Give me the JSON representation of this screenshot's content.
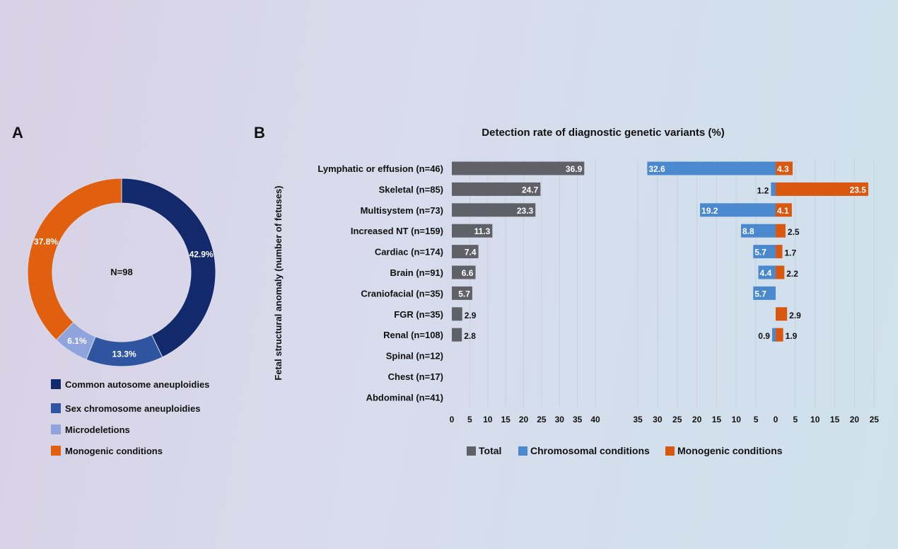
{
  "panels": {
    "a_label": "A",
    "b_label": "B"
  },
  "chart_data": [
    {
      "id": "A",
      "type": "pie",
      "variant": "donut",
      "center_label": "N=98",
      "slices": [
        {
          "label": "Common autosome aneuploidies",
          "value": 42.9,
          "display": "42.9%",
          "color": "#12296b"
        },
        {
          "label": "Sex chromosome aneuploidies",
          "value": 13.3,
          "display": "13.3%",
          "color": "#2f55a0"
        },
        {
          "label": "Microdeletions",
          "value": 6.1,
          "display": "6.1%",
          "color": "#8fa3dc"
        },
        {
          "label": "Monogenic conditions",
          "value": 37.8,
          "display": "37.8%",
          "color": "#e0600f"
        }
      ],
      "legend_position": "bottom"
    },
    {
      "id": "B",
      "type": "bar",
      "orientation": "horizontal",
      "title": "Detection rate of diagnostic genetic variants (%)",
      "ylabel": "Fetal structural anomaly (number of fetuses)",
      "categories": [
        "Lymphatic or effusion (n=46)",
        "Skeletal (n=85)",
        "Multisystem (n=73)",
        "Increased NT (n=159)",
        "Cardiac (n=174)",
        "Brain (n=91)",
        "Craniofacial (n=35)",
        "FGR (n=35)",
        "Renal (n=108)",
        "Spinal (n=12)",
        "Chest (n=17)",
        "Abdominal (n=41)"
      ],
      "series": [
        {
          "name": "Total",
          "color": "#606168",
          "values": [
            36.9,
            24.7,
            23.3,
            11.3,
            7.4,
            6.6,
            5.7,
            2.9,
            2.8,
            null,
            null,
            null
          ]
        },
        {
          "name": "Chromosomal conditions",
          "color": "#4b89cf",
          "values": [
            32.6,
            1.2,
            19.2,
            8.8,
            5.7,
            4.4,
            5.7,
            null,
            0.9,
            null,
            null,
            null
          ]
        },
        {
          "name": "Monogenic conditions",
          "color": "#d9570f",
          "values": [
            4.3,
            23.5,
            4.1,
            2.5,
            1.7,
            2.2,
            null,
            2.9,
            1.9,
            null,
            null,
            null
          ]
        }
      ],
      "axes": {
        "total": {
          "ticks": [
            "0",
            "5",
            "10",
            "15",
            "20",
            "25",
            "30",
            "35",
            "40"
          ],
          "range": [
            0,
            40
          ]
        },
        "chromosomal": {
          "ticks": [
            "35",
            "30",
            "25",
            "20",
            "15",
            "10",
            "5",
            "0"
          ],
          "range": [
            0,
            35
          ],
          "direction": "leftward"
        },
        "monogenic": {
          "ticks": [
            "5",
            "10",
            "15",
            "20",
            "25"
          ],
          "range": [
            0,
            25
          ]
        }
      },
      "grid": true,
      "legend_position": "bottom"
    }
  ]
}
